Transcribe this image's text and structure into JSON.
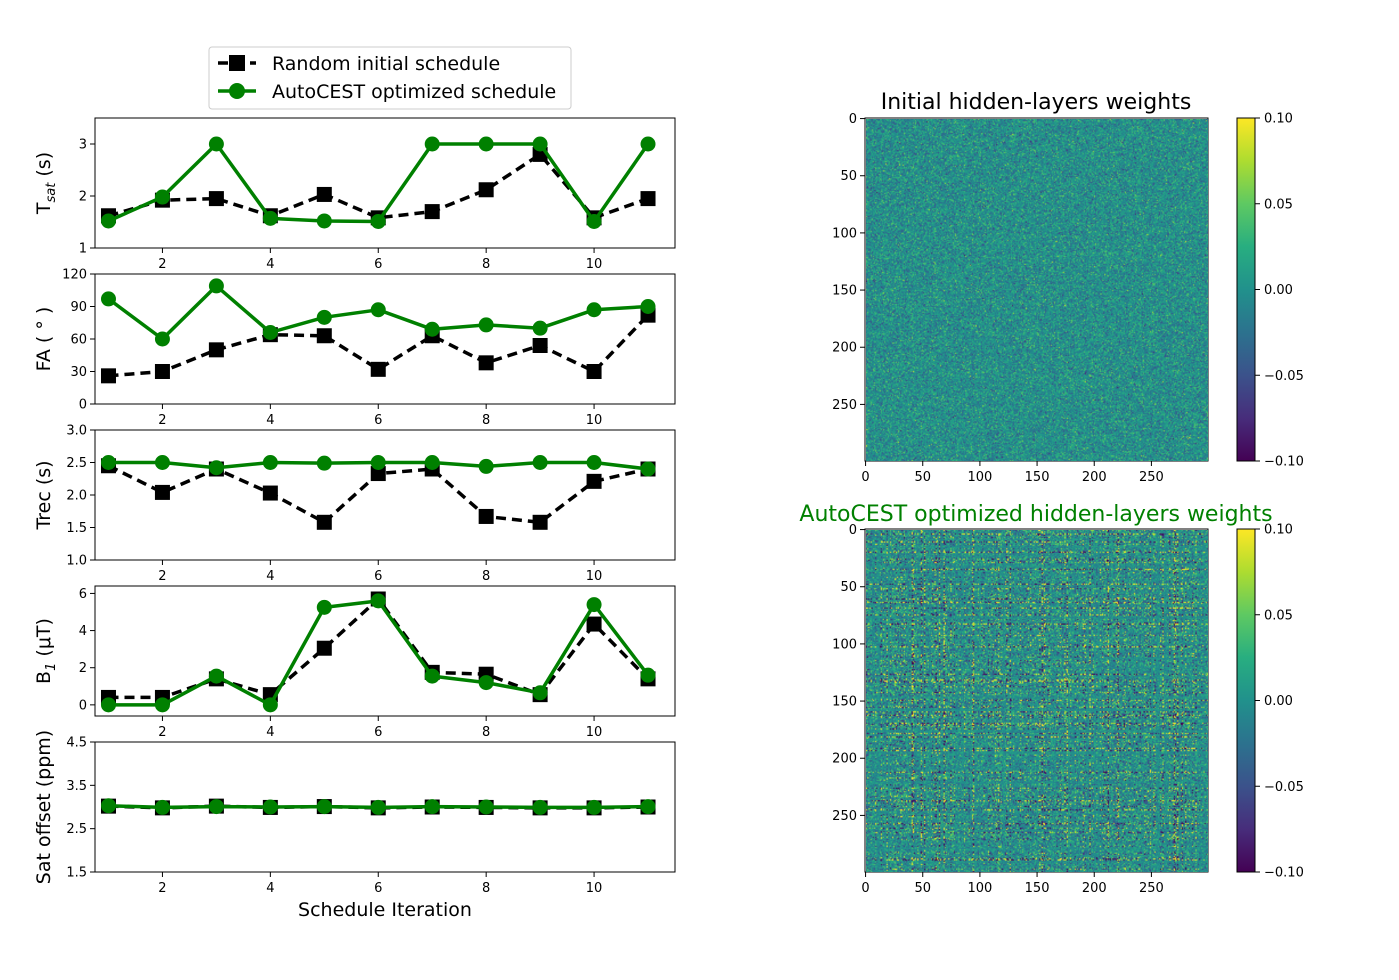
{
  "legend": {
    "entries": [
      {
        "label": "Random initial schedule",
        "color": "#000000",
        "marker": "square",
        "linestyle": "dashed"
      },
      {
        "label": "AutoCEST optimized schedule",
        "color": "#008000",
        "marker": "circle",
        "linestyle": "solid"
      }
    ]
  },
  "chart_data": [
    {
      "type": "line",
      "ylabel": "T",
      "ylabel_sub": "sat",
      "ylabel_tail": " (s)",
      "ylim": [
        1,
        3.5
      ],
      "yticks": [
        1,
        2,
        3
      ],
      "ytick_labels": [
        "1",
        "2",
        "3"
      ],
      "xlim": [
        0.75,
        11.5
      ],
      "xticks": [
        2,
        4,
        6,
        8,
        10
      ],
      "xtick_labels": [
        "2",
        "4",
        "6",
        "8",
        "10"
      ],
      "x": [
        1,
        2,
        3,
        4,
        5,
        6,
        7,
        8,
        9,
        10,
        11
      ],
      "series": [
        {
          "name": "Random initial schedule",
          "values": [
            1.62,
            1.92,
            1.95,
            1.62,
            2.03,
            1.58,
            1.7,
            2.12,
            2.8,
            1.58,
            1.95
          ]
        },
        {
          "name": "AutoCEST optimized schedule",
          "values": [
            1.52,
            1.98,
            3.0,
            1.57,
            1.52,
            1.51,
            3.0,
            3.0,
            3.0,
            1.51,
            3.0
          ]
        }
      ]
    },
    {
      "type": "line",
      "ylabel": "FA ( ° )",
      "ylim": [
        0,
        120
      ],
      "yticks": [
        0,
        30,
        60,
        90,
        120
      ],
      "ytick_labels": [
        "0",
        "30",
        "60",
        "90",
        "120"
      ],
      "xlim": [
        0.75,
        11.5
      ],
      "xticks": [
        2,
        4,
        6,
        8,
        10
      ],
      "xtick_labels": [
        "2",
        "4",
        "6",
        "8",
        "10"
      ],
      "x": [
        1,
        2,
        3,
        4,
        5,
        6,
        7,
        8,
        9,
        10,
        11
      ],
      "series": [
        {
          "name": "Random initial schedule",
          "values": [
            26,
            30,
            50,
            64,
            63,
            32,
            63,
            38,
            54,
            30,
            82
          ]
        },
        {
          "name": "AutoCEST optimized schedule",
          "values": [
            97,
            60,
            109,
            66,
            80,
            87,
            69,
            73,
            70,
            87,
            90
          ]
        }
      ]
    },
    {
      "type": "line",
      "ylabel": "Trec (s)",
      "ylim": [
        1.0,
        3.0
      ],
      "yticks": [
        1.0,
        1.5,
        2.0,
        2.5,
        3.0
      ],
      "ytick_labels": [
        "1.0",
        "1.5",
        "2.0",
        "2.5",
        "3.0"
      ],
      "xlim": [
        0.75,
        11.5
      ],
      "xticks": [
        2,
        4,
        6,
        8,
        10
      ],
      "xtick_labels": [
        "2",
        "4",
        "6",
        "8",
        "10"
      ],
      "x": [
        1,
        2,
        3,
        4,
        5,
        6,
        7,
        8,
        9,
        10,
        11
      ],
      "series": [
        {
          "name": "Random initial schedule",
          "values": [
            2.45,
            2.04,
            2.4,
            2.03,
            1.58,
            2.33,
            2.4,
            1.67,
            1.58,
            2.21,
            2.4
          ]
        },
        {
          "name": "AutoCEST optimized schedule",
          "values": [
            2.5,
            2.5,
            2.42,
            2.5,
            2.49,
            2.5,
            2.5,
            2.44,
            2.5,
            2.5,
            2.4
          ]
        }
      ]
    },
    {
      "type": "line",
      "ylabel": "B",
      "ylabel_sub": "1",
      "ylabel_tail": " (μT)",
      "ylim": [
        -0.6,
        6.4
      ],
      "yticks": [
        0,
        2,
        4,
        6
      ],
      "ytick_labels": [
        "0",
        "2",
        "4",
        "6"
      ],
      "xlim": [
        0.75,
        11.5
      ],
      "xticks": [
        2,
        4,
        6,
        8,
        10
      ],
      "xtick_labels": [
        "2",
        "4",
        "6",
        "8",
        "10"
      ],
      "x": [
        1,
        2,
        3,
        4,
        5,
        6,
        7,
        8,
        9,
        10,
        11
      ],
      "series": [
        {
          "name": "Random initial schedule",
          "values": [
            0.4,
            0.4,
            1.4,
            0.55,
            3.05,
            5.7,
            1.75,
            1.65,
            0.55,
            4.35,
            1.4
          ]
        },
        {
          "name": "AutoCEST optimized schedule",
          "values": [
            0.0,
            0.0,
            1.55,
            0.0,
            5.25,
            5.6,
            1.55,
            1.2,
            0.65,
            5.4,
            1.6
          ]
        }
      ]
    },
    {
      "type": "line",
      "ylabel": "Sat offset (ppm)",
      "xlabel": "Schedule Iteration",
      "ylim": [
        1.5,
        4.5
      ],
      "yticks": [
        1.5,
        2.5,
        3.5,
        4.5
      ],
      "ytick_labels": [
        "1.5",
        "2.5",
        "3.5",
        "4.5"
      ],
      "xlim": [
        0.75,
        11.5
      ],
      "xticks": [
        2,
        4,
        6,
        8,
        10
      ],
      "xtick_labels": [
        "2",
        "4",
        "6",
        "8",
        "10"
      ],
      "x": [
        1,
        2,
        3,
        4,
        5,
        6,
        7,
        8,
        9,
        10,
        11
      ],
      "series": [
        {
          "name": "Random initial schedule",
          "values": [
            3.02,
            2.98,
            3.02,
            2.99,
            3.01,
            2.98,
            3.0,
            2.99,
            2.98,
            2.98,
            3.0
          ]
        },
        {
          "name": "AutoCEST optimized schedule",
          "values": [
            3.03,
            2.99,
            3.01,
            3.0,
            3.01,
            2.99,
            3.01,
            3.0,
            2.99,
            2.99,
            3.01
          ]
        }
      ]
    },
    {
      "type": "heatmap",
      "title": "Initial hidden-layers weights",
      "title_color": "#000000",
      "pattern": "random",
      "colormap": "viridis",
      "rows": 300,
      "cols": 300,
      "xticks": [
        0,
        50,
        100,
        150,
        200,
        250
      ],
      "xtick_labels": [
        "0",
        "50",
        "100",
        "150",
        "200",
        "250"
      ],
      "yticks": [
        0,
        50,
        100,
        150,
        200,
        250
      ],
      "ytick_labels": [
        "0",
        "50",
        "100",
        "150",
        "200",
        "250"
      ],
      "colorbar": {
        "vmin": -0.1,
        "vmax": 0.1,
        "ticks": [
          0.1,
          0.05,
          0.0,
          -0.05,
          -0.1
        ],
        "tick_labels": [
          "0.10",
          "0.05",
          "0.00",
          "−0.05",
          "−0.10"
        ]
      }
    },
    {
      "type": "heatmap",
      "title": "AutoCEST optimized hidden-layers weights",
      "title_color": "#008000",
      "pattern": "structured",
      "colormap": "viridis",
      "rows": 300,
      "cols": 300,
      "xticks": [
        0,
        50,
        100,
        150,
        200,
        250
      ],
      "xtick_labels": [
        "0",
        "50",
        "100",
        "150",
        "200",
        "250"
      ],
      "yticks": [
        0,
        50,
        100,
        150,
        200,
        250
      ],
      "ytick_labels": [
        "0",
        "50",
        "100",
        "150",
        "200",
        "250"
      ],
      "colorbar": {
        "vmin": -0.1,
        "vmax": 0.1,
        "ticks": [
          0.1,
          0.05,
          0.0,
          -0.05,
          -0.1
        ],
        "tick_labels": [
          "0.10",
          "0.05",
          "0.00",
          "−0.05",
          "−0.10"
        ]
      }
    }
  ]
}
